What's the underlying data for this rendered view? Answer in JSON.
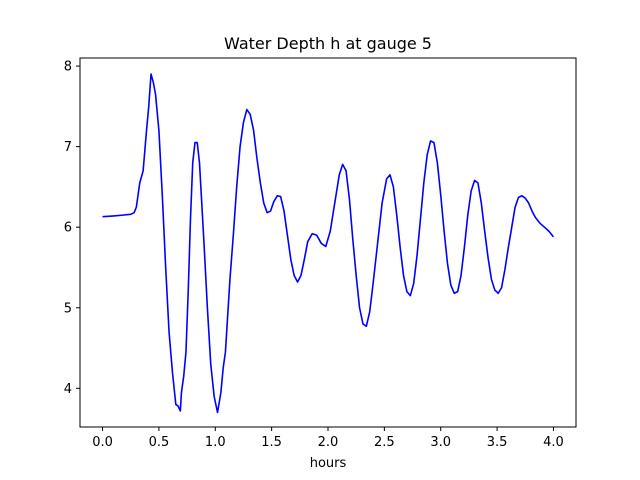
{
  "chart_data": {
    "type": "line",
    "title": "Water Depth h at gauge 5",
    "xlabel": "hours",
    "ylabel": "",
    "xlim": [
      -0.2,
      4.2
    ],
    "ylim": [
      3.52,
      8.1
    ],
    "x_ticks": [
      0.0,
      0.5,
      1.0,
      1.5,
      2.0,
      2.5,
      3.0,
      3.5,
      4.0
    ],
    "x_tick_labels": [
      "0.0",
      "0.5",
      "1.0",
      "1.5",
      "2.0",
      "2.5",
      "3.0",
      "3.5",
      "4.0"
    ],
    "y_ticks": [
      4,
      5,
      6,
      7,
      8
    ],
    "y_tick_labels": [
      "4",
      "5",
      "6",
      "7",
      "8"
    ],
    "grid": false,
    "series": [
      {
        "color": "#0000ff",
        "x": [
          0.0,
          0.1,
          0.18,
          0.25,
          0.28,
          0.3,
          0.33,
          0.36,
          0.39,
          0.41,
          0.43,
          0.45,
          0.47,
          0.5,
          0.53,
          0.56,
          0.59,
          0.62,
          0.65,
          0.67,
          0.69,
          0.7,
          0.72,
          0.74,
          0.76,
          0.78,
          0.8,
          0.82,
          0.84,
          0.86,
          0.88,
          0.9,
          0.93,
          0.96,
          0.99,
          1.02,
          1.05,
          1.07,
          1.09,
          1.11,
          1.13,
          1.16,
          1.19,
          1.22,
          1.25,
          1.28,
          1.31,
          1.34,
          1.37,
          1.4,
          1.43,
          1.46,
          1.49,
          1.52,
          1.55,
          1.58,
          1.61,
          1.64,
          1.67,
          1.7,
          1.73,
          1.76,
          1.79,
          1.82,
          1.86,
          1.9,
          1.94,
          1.98,
          2.02,
          2.06,
          2.1,
          2.13,
          2.16,
          2.19,
          2.22,
          2.25,
          2.28,
          2.31,
          2.34,
          2.37,
          2.4,
          2.44,
          2.48,
          2.52,
          2.55,
          2.58,
          2.61,
          2.64,
          2.67,
          2.7,
          2.73,
          2.76,
          2.79,
          2.82,
          2.85,
          2.88,
          2.91,
          2.94,
          2.97,
          3.0,
          3.03,
          3.06,
          3.09,
          3.12,
          3.15,
          3.18,
          3.21,
          3.24,
          3.27,
          3.3,
          3.33,
          3.36,
          3.39,
          3.42,
          3.45,
          3.48,
          3.51,
          3.54,
          3.57,
          3.6,
          3.63,
          3.66,
          3.69,
          3.72,
          3.75,
          3.78,
          3.81,
          3.84,
          3.88,
          3.92,
          3.96,
          4.0
        ],
        "y": [
          6.13,
          6.14,
          6.15,
          6.16,
          6.18,
          6.25,
          6.55,
          6.7,
          7.2,
          7.5,
          7.9,
          7.8,
          7.65,
          7.2,
          6.4,
          5.5,
          4.7,
          4.2,
          3.8,
          3.78,
          3.72,
          3.95,
          4.15,
          4.45,
          5.2,
          6.1,
          6.8,
          7.05,
          7.05,
          6.8,
          6.3,
          5.8,
          5.0,
          4.3,
          3.9,
          3.7,
          3.95,
          4.25,
          4.45,
          4.9,
          5.35,
          5.9,
          6.5,
          7.0,
          7.3,
          7.46,
          7.4,
          7.2,
          6.85,
          6.55,
          6.3,
          6.18,
          6.2,
          6.32,
          6.39,
          6.38,
          6.2,
          5.9,
          5.6,
          5.4,
          5.32,
          5.4,
          5.6,
          5.82,
          5.92,
          5.9,
          5.8,
          5.76,
          5.95,
          6.3,
          6.65,
          6.78,
          6.7,
          6.35,
          5.85,
          5.4,
          5.0,
          4.8,
          4.77,
          4.95,
          5.3,
          5.8,
          6.3,
          6.6,
          6.65,
          6.5,
          6.15,
          5.75,
          5.4,
          5.2,
          5.15,
          5.3,
          5.65,
          6.1,
          6.55,
          6.9,
          7.07,
          7.05,
          6.8,
          6.4,
          5.95,
          5.55,
          5.28,
          5.18,
          5.2,
          5.4,
          5.75,
          6.15,
          6.45,
          6.58,
          6.55,
          6.3,
          5.95,
          5.62,
          5.35,
          5.22,
          5.18,
          5.25,
          5.48,
          5.75,
          6.0,
          6.25,
          6.37,
          6.39,
          6.36,
          6.3,
          6.2,
          6.12,
          6.05,
          6.0,
          5.95,
          5.88
        ]
      }
    ]
  }
}
